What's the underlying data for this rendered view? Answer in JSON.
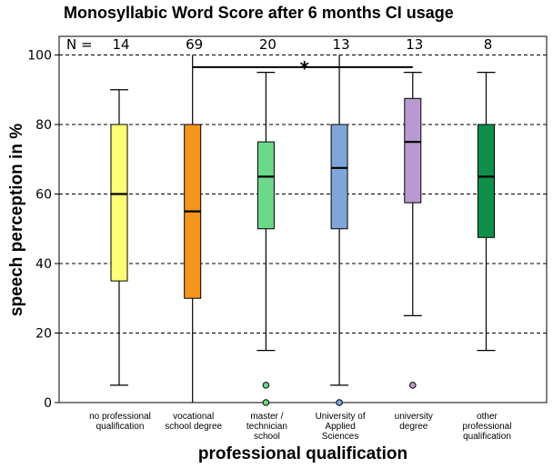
{
  "chart_data": {
    "type": "boxplot",
    "title": "Monosyllabic Word Score after 6 months CI usage",
    "xlabel": "professional qualification",
    "ylabel": "speech perception in %",
    "ylim": [
      0,
      105
    ],
    "yticks": [
      0,
      20,
      40,
      60,
      80,
      100
    ],
    "grid": "horizontal dashed",
    "n_prefix": "N =",
    "categories": [
      {
        "label": [
          "no professional",
          "qualification"
        ],
        "n": "14",
        "color": "#FFFF77",
        "min": 5,
        "q1": 35,
        "median": 60,
        "q3": 80,
        "max": 90,
        "outliers": []
      },
      {
        "label": [
          "vocational",
          "school degree"
        ],
        "n": "69",
        "color": "#F7941E",
        "min": 0,
        "q1": 30,
        "median": 55,
        "q3": 80,
        "max": 100,
        "outliers": []
      },
      {
        "label": [
          "master /",
          "technician",
          "school"
        ],
        "n": "20",
        "color": "#6CD98A",
        "min": 15,
        "q1": 50,
        "median": 65,
        "q3": 75,
        "max": 95,
        "outliers": [
          5,
          0
        ]
      },
      {
        "label": [
          "University of",
          "Applied",
          "Sciences"
        ],
        "n": "13",
        "color": "#7EA6D9",
        "min": 5,
        "q1": 50,
        "median": 67.5,
        "q3": 80,
        "max": 100,
        "outliers": [
          0
        ]
      },
      {
        "label": [
          "university",
          "degree"
        ],
        "n": "13",
        "color": "#B89AD0",
        "min": 25,
        "q1": 57.5,
        "median": 75,
        "q3": 87.5,
        "max": 95,
        "outliers": [
          5
        ]
      },
      {
        "label": [
          "other",
          "professional",
          "qualification"
        ],
        "n": "8",
        "color": "#0F8F4A",
        "min": 15,
        "q1": 47.5,
        "median": 65,
        "q3": 80,
        "max": 95,
        "outliers": []
      }
    ],
    "significance": {
      "from": 1,
      "to": 4,
      "y": 96.5,
      "label": "*"
    }
  }
}
